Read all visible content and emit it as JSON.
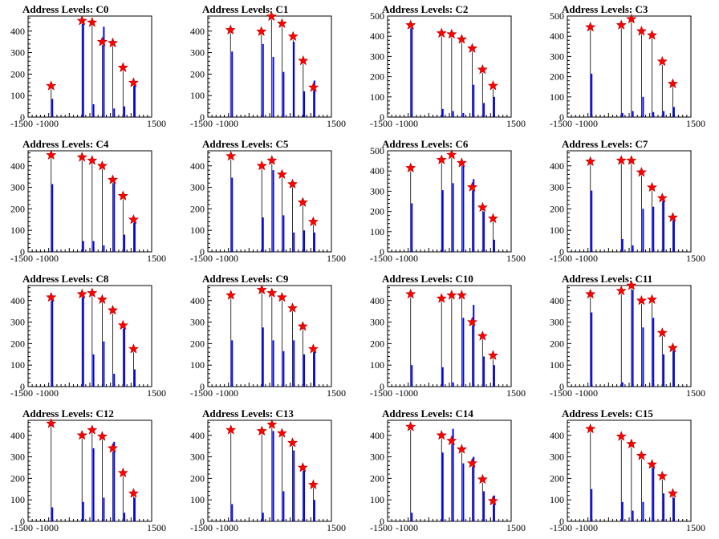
{
  "figure": {
    "title_prefix": "Address Levels: "
  },
  "axis": {
    "xlim": [
      -1500,
      1500
    ],
    "x_ticks": [
      -1500,
      -1000,
      1500
    ],
    "x_tick_labels": [
      "-1500",
      "-1000",
      "1500"
    ],
    "y_tick_labels_0_400": [
      "0",
      "100",
      "200",
      "300",
      "400"
    ],
    "y_tick_labels_0_500": [
      "0",
      "100",
      "200",
      "300",
      "400",
      "500"
    ]
  },
  "chart_data": [
    {
      "type": "bar",
      "title": "Address Levels: C0",
      "ylim": [
        0,
        470
      ],
      "x": [
        -950,
        -200,
        50,
        300,
        550,
        800,
        1050
      ],
      "values": [
        85,
        450,
        60,
        420,
        40,
        50,
        160
      ],
      "peaks": [
        {
          "x": -940,
          "y": 145
        },
        {
          "x": -190,
          "y": 448
        },
        {
          "x": 55,
          "y": 440
        },
        {
          "x": 300,
          "y": 350
        },
        {
          "x": 555,
          "y": 345
        },
        {
          "x": 805,
          "y": 230
        },
        {
          "x": 1060,
          "y": 160
        }
      ]
    },
    {
      "type": "bar",
      "title": "Address Levels: C1",
      "ylim": [
        0,
        470
      ],
      "x": [
        -950,
        -200,
        50,
        300,
        550,
        800,
        1050
      ],
      "values": [
        305,
        340,
        280,
        210,
        350,
        120,
        170
      ],
      "peaks": [
        {
          "x": -950,
          "y": 405
        },
        {
          "x": -200,
          "y": 398
        },
        {
          "x": 45,
          "y": 468
        },
        {
          "x": 300,
          "y": 435
        },
        {
          "x": 570,
          "y": 375
        },
        {
          "x": 815,
          "y": 262
        },
        {
          "x": 1065,
          "y": 138
        }
      ]
    },
    {
      "type": "bar",
      "title": "Address Levels: C2",
      "ylim": [
        0,
        500
      ],
      "x": [
        -950,
        -200,
        50,
        300,
        550,
        800,
        1050
      ],
      "values": [
        440,
        40,
        30,
        20,
        160,
        70,
        100
      ],
      "peaks": [
        {
          "x": -940,
          "y": 455
        },
        {
          "x": -190,
          "y": 415
        },
        {
          "x": 55,
          "y": 410
        },
        {
          "x": 300,
          "y": 385
        },
        {
          "x": 555,
          "y": 340
        },
        {
          "x": 805,
          "y": 235
        },
        {
          "x": 1060,
          "y": 155
        }
      ]
    },
    {
      "type": "bar",
      "title": "Address Levels: C3",
      "ylim": [
        0,
        500
      ],
      "x": [
        -950,
        -200,
        50,
        300,
        550,
        800,
        1050
      ],
      "values": [
        215,
        20,
        30,
        100,
        25,
        30,
        50
      ],
      "peaks": [
        {
          "x": -940,
          "y": 445
        },
        {
          "x": -190,
          "y": 455
        },
        {
          "x": 55,
          "y": 485
        },
        {
          "x": 300,
          "y": 425
        },
        {
          "x": 555,
          "y": 405
        },
        {
          "x": 805,
          "y": 275
        },
        {
          "x": 1060,
          "y": 165
        }
      ]
    },
    {
      "type": "bar",
      "title": "Address Levels: C4",
      "ylim": [
        0,
        470
      ],
      "x": [
        -950,
        -200,
        50,
        300,
        550,
        800,
        1050
      ],
      "values": [
        315,
        50,
        50,
        30,
        320,
        80,
        150
      ],
      "peaks": [
        {
          "x": -940,
          "y": 450
        },
        {
          "x": -190,
          "y": 440
        },
        {
          "x": 55,
          "y": 425
        },
        {
          "x": 300,
          "y": 400
        },
        {
          "x": 555,
          "y": 335
        },
        {
          "x": 805,
          "y": 260
        },
        {
          "x": 1060,
          "y": 150
        }
      ]
    },
    {
      "type": "bar",
      "title": "Address Levels: C5",
      "ylim": [
        0,
        470
      ],
      "x": [
        -950,
        -200,
        50,
        300,
        550,
        800,
        1050
      ],
      "values": [
        345,
        160,
        380,
        170,
        90,
        100,
        90
      ],
      "peaks": [
        {
          "x": -940,
          "y": 445
        },
        {
          "x": -190,
          "y": 400
        },
        {
          "x": 55,
          "y": 425
        },
        {
          "x": 300,
          "y": 360
        },
        {
          "x": 555,
          "y": 315
        },
        {
          "x": 805,
          "y": 230
        },
        {
          "x": 1060,
          "y": 140
        }
      ]
    },
    {
      "type": "bar",
      "title": "Address Levels: C6",
      "ylim": [
        0,
        500
      ],
      "x": [
        -950,
        -200,
        50,
        300,
        550,
        800,
        1050
      ],
      "values": [
        240,
        305,
        340,
        430,
        360,
        200,
        60
      ],
      "peaks": [
        {
          "x": -940,
          "y": 415
        },
        {
          "x": -190,
          "y": 455
        },
        {
          "x": 55,
          "y": 480
        },
        {
          "x": 300,
          "y": 440
        },
        {
          "x": 555,
          "y": 320
        },
        {
          "x": 805,
          "y": 220
        },
        {
          "x": 1060,
          "y": 165
        }
      ]
    },
    {
      "type": "bar",
      "title": "Address Levels: C7",
      "ylim": [
        0,
        470
      ],
      "x": [
        -950,
        -200,
        50,
        300,
        550,
        800,
        1050
      ],
      "values": [
        285,
        60,
        30,
        200,
        210,
        240,
        150
      ],
      "peaks": [
        {
          "x": -940,
          "y": 420
        },
        {
          "x": -190,
          "y": 425
        },
        {
          "x": 55,
          "y": 425
        },
        {
          "x": 300,
          "y": 370
        },
        {
          "x": 555,
          "y": 300
        },
        {
          "x": 805,
          "y": 250
        },
        {
          "x": 1060,
          "y": 160
        }
      ]
    },
    {
      "type": "bar",
      "title": "Address Levels: C8",
      "ylim": [
        0,
        470
      ],
      "x": [
        -950,
        -200,
        50,
        300,
        550,
        800,
        1050
      ],
      "values": [
        420,
        420,
        150,
        210,
        60,
        280,
        80
      ],
      "peaks": [
        {
          "x": -940,
          "y": 415
        },
        {
          "x": -190,
          "y": 430
        },
        {
          "x": 55,
          "y": 435
        },
        {
          "x": 300,
          "y": 405
        },
        {
          "x": 555,
          "y": 355
        },
        {
          "x": 805,
          "y": 285
        },
        {
          "x": 1060,
          "y": 175
        }
      ]
    },
    {
      "type": "bar",
      "title": "Address Levels: C9",
      "ylim": [
        0,
        470
      ],
      "x": [
        -950,
        -200,
        50,
        300,
        550,
        800,
        1050
      ],
      "values": [
        215,
        275,
        215,
        165,
        215,
        150,
        170
      ],
      "peaks": [
        {
          "x": -940,
          "y": 425
        },
        {
          "x": -190,
          "y": 450
        },
        {
          "x": 55,
          "y": 435
        },
        {
          "x": 300,
          "y": 415
        },
        {
          "x": 555,
          "y": 365
        },
        {
          "x": 805,
          "y": 280
        },
        {
          "x": 1060,
          "y": 175
        }
      ]
    },
    {
      "type": "bar",
      "title": "Address Levels: C10",
      "ylim": [
        0,
        470
      ],
      "x": [
        -950,
        -200,
        50,
        300,
        550,
        800,
        1050
      ],
      "values": [
        100,
        90,
        20,
        320,
        380,
        140,
        100
      ],
      "peaks": [
        {
          "x": -940,
          "y": 430
        },
        {
          "x": -190,
          "y": 410
        },
        {
          "x": 55,
          "y": 425
        },
        {
          "x": 300,
          "y": 425
        },
        {
          "x": 555,
          "y": 300
        },
        {
          "x": 805,
          "y": 235
        },
        {
          "x": 1060,
          "y": 145
        }
      ]
    },
    {
      "type": "bar",
      "title": "Address Levels: C11",
      "ylim": [
        0,
        470
      ],
      "x": [
        -950,
        -200,
        50,
        300,
        550,
        800,
        1050
      ],
      "values": [
        345,
        20,
        450,
        275,
        320,
        150,
        170
      ],
      "peaks": [
        {
          "x": -940,
          "y": 430
        },
        {
          "x": -190,
          "y": 445
        },
        {
          "x": 55,
          "y": 470
        },
        {
          "x": 300,
          "y": 400
        },
        {
          "x": 555,
          "y": 405
        },
        {
          "x": 805,
          "y": 250
        },
        {
          "x": 1060,
          "y": 180
        }
      ]
    },
    {
      "type": "bar",
      "title": "Address Levels: C12",
      "ylim": [
        0,
        470
      ],
      "x": [
        -950,
        -200,
        50,
        300,
        550,
        800,
        1050
      ],
      "values": [
        65,
        90,
        340,
        110,
        370,
        40,
        110
      ],
      "peaks": [
        {
          "x": -940,
          "y": 455
        },
        {
          "x": -190,
          "y": 400
        },
        {
          "x": 55,
          "y": 425
        },
        {
          "x": 300,
          "y": 395
        },
        {
          "x": 555,
          "y": 340
        },
        {
          "x": 805,
          "y": 225
        },
        {
          "x": 1060,
          "y": 130
        }
      ]
    },
    {
      "type": "bar",
      "title": "Address Levels: C13",
      "ylim": [
        0,
        470
      ],
      "x": [
        -950,
        -200,
        50,
        300,
        550,
        800,
        1050
      ],
      "values": [
        80,
        40,
        420,
        140,
        330,
        240,
        100
      ],
      "peaks": [
        {
          "x": -940,
          "y": 425
        },
        {
          "x": -190,
          "y": 420
        },
        {
          "x": 55,
          "y": 450
        },
        {
          "x": 300,
          "y": 410
        },
        {
          "x": 555,
          "y": 365
        },
        {
          "x": 805,
          "y": 250
        },
        {
          "x": 1060,
          "y": 170
        }
      ]
    },
    {
      "type": "bar",
      "title": "Address Levels: C14",
      "ylim": [
        0,
        470
      ],
      "x": [
        -950,
        -200,
        50,
        300,
        550,
        800,
        1050
      ],
      "values": [
        40,
        320,
        430,
        270,
        300,
        140,
        120
      ],
      "peaks": [
        {
          "x": -940,
          "y": 440
        },
        {
          "x": -190,
          "y": 400
        },
        {
          "x": 55,
          "y": 375
        },
        {
          "x": 300,
          "y": 335
        },
        {
          "x": 555,
          "y": 270
        },
        {
          "x": 805,
          "y": 195
        },
        {
          "x": 1060,
          "y": 95
        }
      ]
    },
    {
      "type": "bar",
      "title": "Address Levels: C15",
      "ylim": [
        0,
        470
      ],
      "x": [
        -950,
        -200,
        50,
        300,
        550,
        800,
        1050
      ],
      "values": [
        150,
        90,
        50,
        90,
        250,
        130,
        110
      ],
      "peaks": [
        {
          "x": -940,
          "y": 430
        },
        {
          "x": -190,
          "y": 395
        },
        {
          "x": 55,
          "y": 360
        },
        {
          "x": 300,
          "y": 305
        },
        {
          "x": 555,
          "y": 265
        },
        {
          "x": 805,
          "y": 210
        },
        {
          "x": 1060,
          "y": 130
        }
      ]
    }
  ]
}
